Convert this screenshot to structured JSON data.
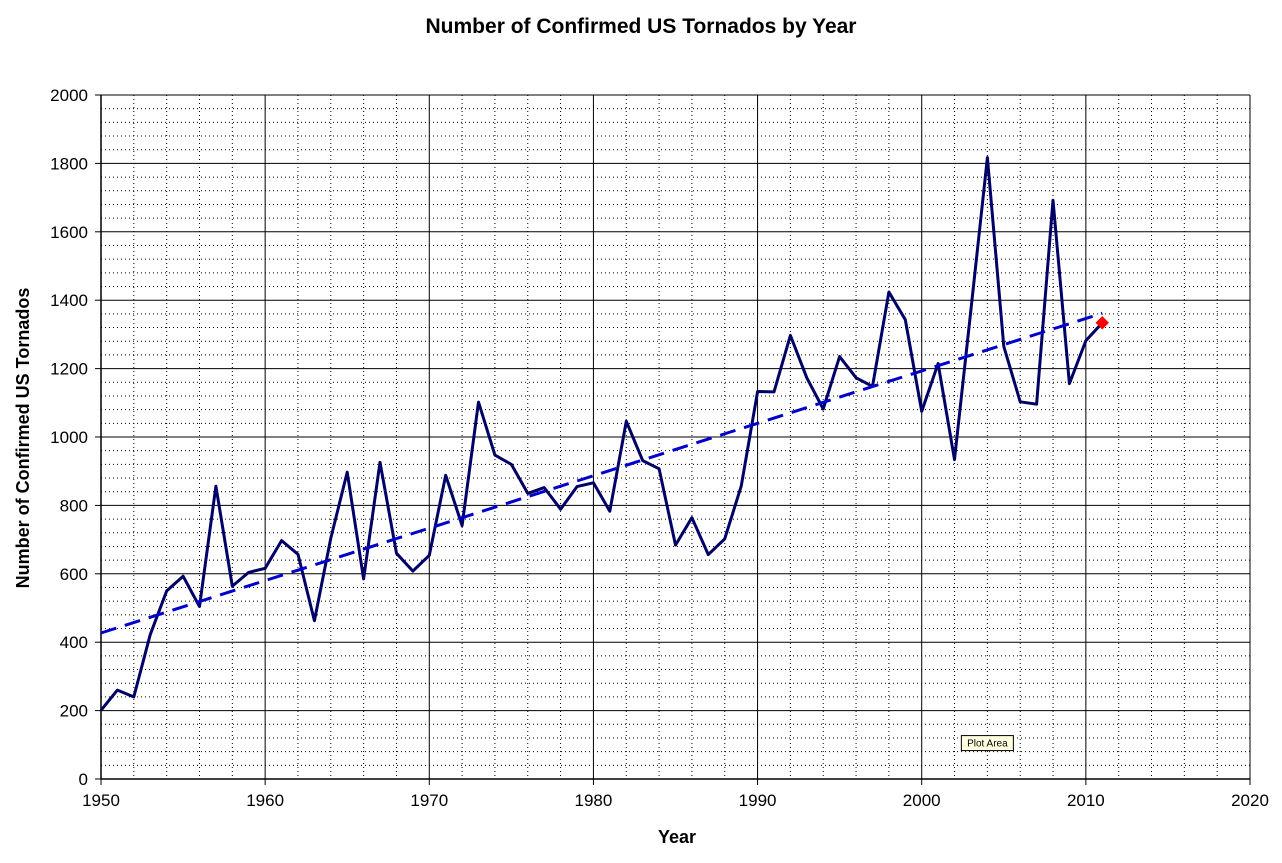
{
  "chart_data": {
    "type": "line",
    "title": "Number of Confirmed US Tornados by Year",
    "xlabel": "Year",
    "ylabel": "Number of Confirmed US Tornados",
    "xlim": [
      1950,
      2020
    ],
    "ylim": [
      0,
      2000
    ],
    "x_ticks": [
      1950,
      1960,
      1970,
      1980,
      1990,
      2000,
      2010,
      2020
    ],
    "y_ticks": [
      0,
      200,
      400,
      600,
      800,
      1000,
      1200,
      1400,
      1600,
      1800,
      2000
    ],
    "x_minor_step": 2,
    "y_minor_step": 40,
    "grid": true,
    "legend": "none",
    "series": [
      {
        "style": "solid",
        "color": "#000066",
        "points": [
          [
            1950,
            201
          ],
          [
            1951,
            260
          ],
          [
            1952,
            240
          ],
          [
            1953,
            422
          ],
          [
            1954,
            550
          ],
          [
            1955,
            593
          ],
          [
            1956,
            504
          ],
          [
            1957,
            856
          ],
          [
            1958,
            564
          ],
          [
            1959,
            604
          ],
          [
            1960,
            616
          ],
          [
            1961,
            697
          ],
          [
            1962,
            657
          ],
          [
            1963,
            463
          ],
          [
            1964,
            704
          ],
          [
            1965,
            897
          ],
          [
            1966,
            585
          ],
          [
            1967,
            926
          ],
          [
            1968,
            660
          ],
          [
            1969,
            608
          ],
          [
            1970,
            654
          ],
          [
            1971,
            888
          ],
          [
            1972,
            741
          ],
          [
            1973,
            1102
          ],
          [
            1974,
            947
          ],
          [
            1975,
            920
          ],
          [
            1976,
            835
          ],
          [
            1977,
            852
          ],
          [
            1978,
            789
          ],
          [
            1979,
            855
          ],
          [
            1980,
            866
          ],
          [
            1981,
            783
          ],
          [
            1982,
            1046
          ],
          [
            1983,
            931
          ],
          [
            1984,
            907
          ],
          [
            1985,
            684
          ],
          [
            1986,
            764
          ],
          [
            1987,
            656
          ],
          [
            1988,
            702
          ],
          [
            1989,
            856
          ],
          [
            1990,
            1133
          ],
          [
            1991,
            1132
          ],
          [
            1992,
            1297
          ],
          [
            1993,
            1173
          ],
          [
            1994,
            1082
          ],
          [
            1995,
            1235
          ],
          [
            1996,
            1173
          ],
          [
            1997,
            1148
          ],
          [
            1998,
            1424
          ],
          [
            1999,
            1343
          ],
          [
            2000,
            1075
          ],
          [
            2001,
            1215
          ],
          [
            2002,
            934
          ],
          [
            2003,
            1374
          ],
          [
            2004,
            1817
          ],
          [
            2005,
            1265
          ],
          [
            2006,
            1103
          ],
          [
            2007,
            1096
          ],
          [
            2008,
            1692
          ],
          [
            2009,
            1156
          ],
          [
            2010,
            1282
          ],
          [
            2011,
            1334
          ]
        ]
      },
      {
        "style": "dashed",
        "color": "#0000cc",
        "points": [
          [
            1950,
            427
          ],
          [
            2011,
            1362
          ]
        ]
      },
      {
        "style": "marker",
        "marker": "diamond",
        "color": "#ff0000",
        "points": [
          [
            2011,
            1334
          ]
        ]
      }
    ],
    "annotations": [
      {
        "text": "Plot Area",
        "x": 2004,
        "y": 105
      }
    ]
  }
}
